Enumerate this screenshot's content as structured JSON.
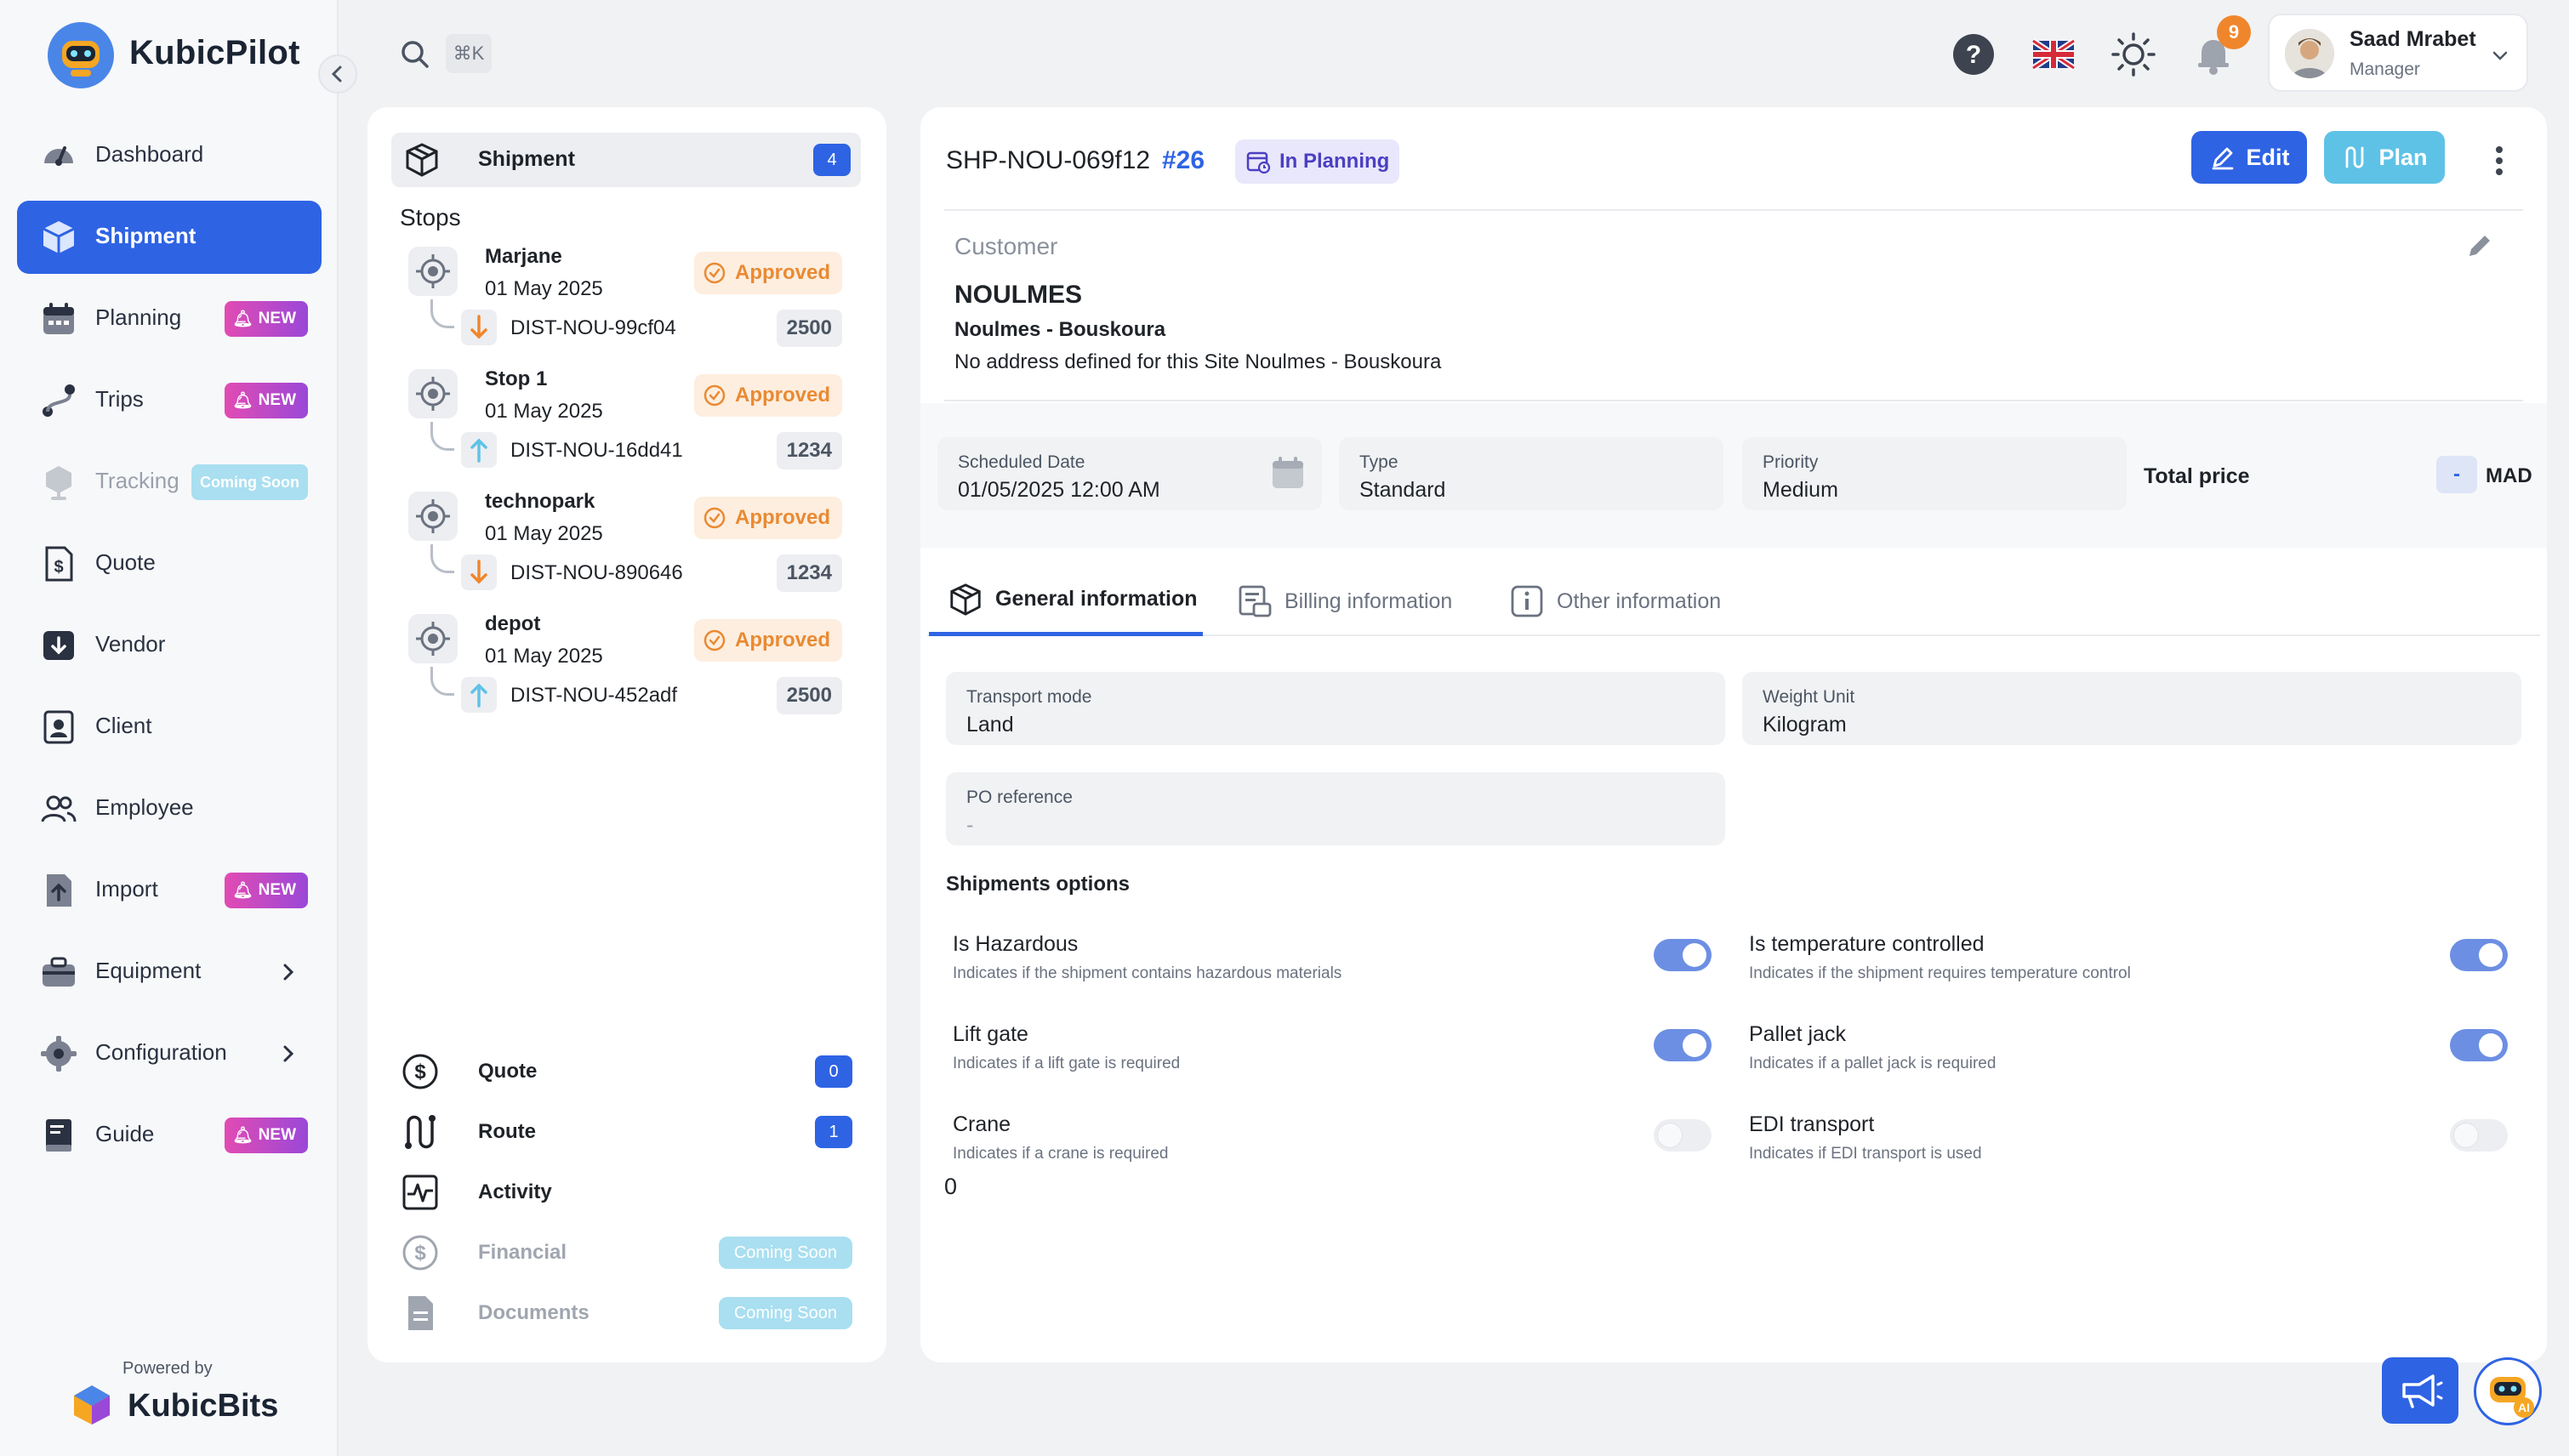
{
  "brand": {
    "name": "KubicPilot",
    "powered_by": "Powered by",
    "powered_brand": "KubicBits"
  },
  "sidebar": {
    "items": [
      {
        "label": "Dashboard"
      },
      {
        "label": "Shipment"
      },
      {
        "label": "Planning",
        "badge": "NEW"
      },
      {
        "label": "Trips",
        "badge": "NEW"
      },
      {
        "label": "Tracking",
        "badge": "Coming Soon"
      },
      {
        "label": "Quote"
      },
      {
        "label": "Vendor"
      },
      {
        "label": "Client"
      },
      {
        "label": "Employee"
      },
      {
        "label": "Import",
        "badge": "NEW"
      },
      {
        "label": "Equipment"
      },
      {
        "label": "Configuration"
      },
      {
        "label": "Guide",
        "badge": "NEW"
      }
    ]
  },
  "header": {
    "shortcut": "⌘K",
    "notifications_count": "9",
    "user": {
      "name": "Saad Mrabet",
      "role": "Manager"
    }
  },
  "left_panel": {
    "shipment_tab": {
      "label": "Shipment",
      "count": "4"
    },
    "stops_title": "Stops",
    "stops": [
      {
        "name": "Marjane",
        "date": "01 May 2025",
        "status": "Approved",
        "dist": "DIST-NOU-99cf04",
        "qty": "2500",
        "dir": "down"
      },
      {
        "name": "Stop 1",
        "date": "01 May 2025",
        "status": "Approved",
        "dist": "DIST-NOU-16dd41",
        "qty": "1234",
        "dir": "up"
      },
      {
        "name": "technopark",
        "date": "01 May 2025",
        "status": "Approved",
        "dist": "DIST-NOU-890646",
        "qty": "1234",
        "dir": "down"
      },
      {
        "name": "depot",
        "date": "01 May 2025",
        "status": "Approved",
        "dist": "DIST-NOU-452adf",
        "qty": "2500",
        "dir": "up"
      }
    ],
    "links": [
      {
        "label": "Quote",
        "count": "0"
      },
      {
        "label": "Route",
        "count": "1"
      },
      {
        "label": "Activity"
      },
      {
        "label": "Financial",
        "badge": "Coming Soon"
      },
      {
        "label": "Documents",
        "badge": "Coming Soon"
      }
    ]
  },
  "shipment": {
    "reference": "SHP-NOU-069f12",
    "number": "#26",
    "status": "In Planning",
    "edit_label": "Edit",
    "plan_label": "Plan",
    "customer_label": "Customer",
    "customer_name": "NOULMES",
    "customer_site": "Noulmes - Bouskoura",
    "customer_address": "No address defined for this Site Noulmes - Bouskoura",
    "scheduled": {
      "label": "Scheduled Date",
      "value": "01/05/2025 12:00 AM"
    },
    "type": {
      "label": "Type",
      "value": "Standard"
    },
    "priority": {
      "label": "Priority",
      "value": "Medium"
    },
    "total": {
      "label": "Total price",
      "value": "-",
      "currency": "MAD"
    }
  },
  "tabs": [
    {
      "label": "General information"
    },
    {
      "label": "Billing information"
    },
    {
      "label": "Other information"
    }
  ],
  "general": {
    "transport_mode": {
      "label": "Transport mode",
      "value": "Land"
    },
    "weight_unit": {
      "label": "Weight Unit",
      "value": "Kilogram"
    },
    "po_reference": {
      "label": "PO reference",
      "value": "-"
    },
    "options_title": "Shipments options",
    "options": [
      {
        "title": "Is Hazardous",
        "desc": "Indicates if the shipment contains hazardous materials",
        "on": true
      },
      {
        "title": "Is temperature controlled",
        "desc": "Indicates if the shipment requires temperature control",
        "on": true
      },
      {
        "title": "Lift gate",
        "desc": "Indicates if a lift gate is required",
        "on": true
      },
      {
        "title": "Pallet jack",
        "desc": "Indicates if a pallet jack is required",
        "on": true
      },
      {
        "title": "Crane",
        "desc": "Indicates if a crane is required",
        "on": false
      },
      {
        "title": "EDI transport",
        "desc": "Indicates if EDI transport is used",
        "on": false
      }
    ],
    "footer_value": "0"
  },
  "colors": {
    "accent": "#2e63e4",
    "approved": "#e98a33",
    "plan": "#5ec2e6"
  }
}
